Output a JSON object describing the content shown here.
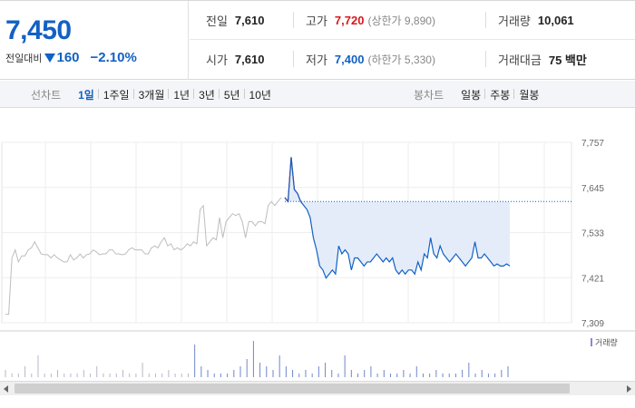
{
  "header": {
    "current_price": "7,450",
    "change_label": "전일대비",
    "change_amount": "160",
    "change_percent": "−2.10%"
  },
  "stats": {
    "prev_close_label": "전일",
    "prev_close": "7,610",
    "high_label": "고가",
    "high": "7,720",
    "upper_limit": "(상한가 9,890)",
    "volume_label": "거래량",
    "volume": "10,061",
    "open_label": "시가",
    "open": "7,610",
    "low_label": "저가",
    "low": "7,400",
    "lower_limit": "(하한가 5,330)",
    "amount_label": "거래대금",
    "amount": "75 백만"
  },
  "tabs": {
    "line_title": "선차트",
    "line_tabs": [
      "1일",
      "1주일",
      "3개월",
      "1년",
      "3년",
      "5년",
      "10년"
    ],
    "line_active": 0,
    "candle_title": "봉차트",
    "candle_tabs": [
      "일봉",
      "주봉",
      "월봉"
    ]
  },
  "colors": {
    "blue": "#1261c4",
    "red": "#d7191c",
    "fill": "#e4ecfa"
  },
  "chart_data": {
    "type": "line",
    "y_ticks": [
      "7,757",
      "7,645",
      "7,533",
      "7,421",
      "7,309"
    ],
    "ylim": [
      7309,
      7757
    ],
    "reference_value": 7610,
    "volume_legend": "거래량",
    "series": [
      {
        "values_prev": [
          7330,
          7330,
          7470,
          7490,
          7460,
          7475,
          7475,
          7490,
          7495,
          7510,
          7495,
          7480,
          7478,
          7478,
          7470,
          7478,
          7470,
          7465,
          7460,
          7460,
          7478,
          7465,
          7470,
          7480,
          7470,
          7478,
          7480,
          7490,
          7485,
          7478,
          7480,
          7480,
          7490,
          7490,
          7480,
          7480,
          7478,
          7480,
          7490,
          7495,
          7490,
          7490,
          7490,
          7480,
          7480,
          7495,
          7500,
          7495,
          7510,
          7520,
          7500,
          7505,
          7490,
          7495,
          7490,
          7495,
          7505,
          7500,
          7510,
          7505,
          7590,
          7600,
          7500,
          7510,
          7520,
          7515,
          7570,
          7520,
          7560,
          7570,
          7580,
          7575,
          7580,
          7560,
          7520,
          7560,
          7560,
          7550,
          7560,
          7560,
          7555,
          7600,
          7610,
          7600,
          7610,
          7620
        ]
      },
      {
        "values_today": [
          7620,
          7610,
          7720,
          7640,
          7630,
          7610,
          7600,
          7590,
          7570,
          7520,
          7490,
          7450,
          7440,
          7420,
          7430,
          7440,
          7430,
          7500,
          7480,
          7490,
          7480,
          7440,
          7470,
          7470,
          7460,
          7450,
          7460,
          7460,
          7470,
          7480,
          7470,
          7460,
          7470,
          7460,
          7470,
          7440,
          7430,
          7440,
          7430,
          7440,
          7440,
          7430,
          7460,
          7440,
          7480,
          7470,
          7520,
          7480,
          7470,
          7500,
          7480,
          7470,
          7460,
          7470,
          7480,
          7470,
          7460,
          7450,
          7460,
          7470,
          7510,
          7470,
          7470,
          7480,
          7470,
          7460,
          7450,
          7455,
          7450,
          7450,
          7455,
          7450
        ]
      }
    ],
    "volume": [
      2,
      1,
      1,
      3,
      1,
      6,
      1,
      1,
      2,
      1,
      1,
      1,
      2,
      1,
      3,
      1,
      1,
      1,
      2,
      1,
      1,
      4,
      1,
      1,
      1,
      2,
      1,
      1,
      1,
      9,
      3,
      2,
      1,
      1,
      1,
      2,
      3,
      5,
      10,
      4,
      3,
      2,
      6,
      3,
      2,
      1,
      2,
      1,
      3,
      4,
      2,
      1,
      6,
      2,
      1,
      2,
      3,
      1,
      2,
      1,
      1,
      2,
      1,
      3,
      1,
      1,
      2,
      1,
      1,
      1,
      2,
      4,
      1,
      2,
      1,
      1,
      2,
      3
    ]
  }
}
